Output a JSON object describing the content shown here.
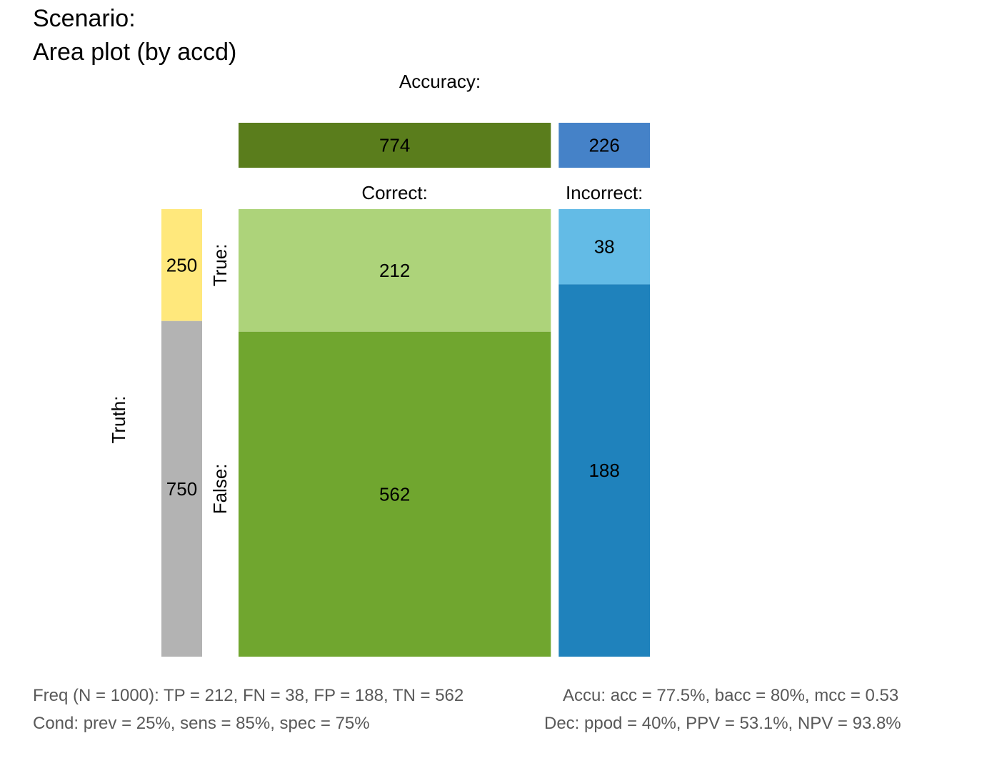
{
  "header": {
    "title_line1": "Scenario:",
    "title_line2": "Area plot (by accd)"
  },
  "chart_data": {
    "type": "area",
    "title": "Area plot (by accd)",
    "top_label": "Accuracy:",
    "truth_label": "Truth:",
    "columns": [
      {
        "name": "Correct:",
        "total": 774,
        "color": "#5A7D1C",
        "count_label": "774"
      },
      {
        "name": "Incorrect:",
        "total": 226,
        "color": "#4582C8",
        "count_label": "226"
      }
    ],
    "rows": [
      {
        "name": "True:",
        "total": 250,
        "color": "#FFE87C",
        "count_label": "250"
      },
      {
        "name": "False:",
        "total": 750,
        "color": "#B3B3B3",
        "count_label": "750"
      }
    ],
    "cells": [
      {
        "id": "TP",
        "column": "Correct:",
        "row": "True:",
        "value": 212,
        "color": "#ADD37A",
        "label": "212"
      },
      {
        "id": "TN",
        "column": "Correct:",
        "row": "False:",
        "value": 562,
        "color": "#70A62F",
        "label": "562"
      },
      {
        "id": "FN",
        "column": "Incorrect:",
        "row": "True:",
        "value": 38,
        "color": "#63BBE6",
        "label": "38"
      },
      {
        "id": "FP",
        "column": "Incorrect:",
        "row": "False:",
        "value": 188,
        "color": "#1F82BC",
        "label": "188"
      }
    ]
  },
  "footer": {
    "freq": "Freq (N = 1000):  TP = 212, FN = 38, FP = 188, TN = 562",
    "accu": "Accu:  acc = 77.5%, bacc = 80%, mcc = 0.53",
    "cond": "Cond:  prev = 25%, sens = 85%, spec = 75%",
    "dec": "Dec:  ppod = 40%, PPV = 53.1%, NPV = 93.8%"
  }
}
